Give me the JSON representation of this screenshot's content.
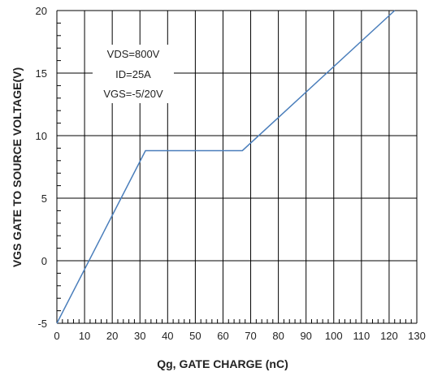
{
  "chart_data": {
    "type": "line",
    "title": "",
    "xlabel": "Qg, GATE CHARGE (nC)",
    "ylabel": "VGS GATE TO SOURCE VOLTAGE(V)",
    "xlim": [
      0,
      130
    ],
    "ylim": [
      -5,
      20
    ],
    "x_ticks": [
      0,
      10,
      20,
      30,
      40,
      50,
      60,
      70,
      80,
      90,
      100,
      110,
      120,
      130
    ],
    "y_ticks": [
      -5,
      0,
      5,
      10,
      15,
      20
    ],
    "grid": true,
    "legend": "none",
    "series": [
      {
        "x": [
          0,
          32,
          67,
          122
        ],
        "y": [
          -5,
          8.8,
          8.8,
          20
        ],
        "color": "#4a7ebb"
      }
    ],
    "annotations": [
      "VDS=800V",
      "ID=25A",
      "VGS=-5/20V"
    ]
  }
}
